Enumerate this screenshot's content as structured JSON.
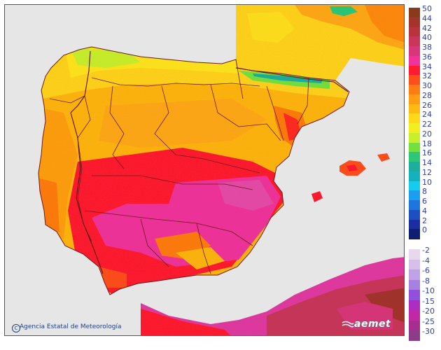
{
  "map": {
    "credit_text": "Agencia Estatal de Meteorología",
    "credit_symbol": "C",
    "logo_text": "aemet",
    "sea_color": "#e6e6e6",
    "border_color": "#6b1a1a"
  },
  "legend": {
    "entries": [
      {
        "label": "50",
        "color": "#8a3a1c"
      },
      {
        "label": "44",
        "color": "#a3342c"
      },
      {
        "label": "42",
        "color": "#b8343c"
      },
      {
        "label": "40",
        "color": "#c8365a"
      },
      {
        "label": "38",
        "color": "#d83678"
      },
      {
        "label": "36",
        "color": "#f0329a"
      },
      {
        "label": "34",
        "color": "#ff1a2e"
      },
      {
        "label": "32",
        "color": "#ff4e1a"
      },
      {
        "label": "30",
        "color": "#ff7c10"
      },
      {
        "label": "28",
        "color": "#ff9e12"
      },
      {
        "label": "26",
        "color": "#ffba10"
      },
      {
        "label": "24",
        "color": "#ffd818"
      },
      {
        "label": "22",
        "color": "#f0f020"
      },
      {
        "label": "20",
        "color": "#c8ee2c"
      },
      {
        "label": "18",
        "color": "#74e040"
      },
      {
        "label": "16",
        "color": "#2cc878"
      },
      {
        "label": "14",
        "color": "#1cae9e"
      },
      {
        "label": "12",
        "color": "#12b2c0"
      },
      {
        "label": "10",
        "color": "#16ccec"
      },
      {
        "label": "8",
        "color": "#1a9ef0"
      },
      {
        "label": "6",
        "color": "#1c76de"
      },
      {
        "label": "4",
        "color": "#1c50c0"
      },
      {
        "label": "2",
        "color": "#1a2ea0"
      },
      {
        "label": "0",
        "color": "#101e70"
      },
      {
        "label": "-2",
        "color": "#e8d8ee"
      },
      {
        "label": "-4",
        "color": "#d6c0ea"
      },
      {
        "label": "-6",
        "color": "#c0a2e6"
      },
      {
        "label": "-8",
        "color": "#a880e0"
      },
      {
        "label": "-10",
        "color": "#9050dc"
      },
      {
        "label": "-15",
        "color": "#ae2cc0"
      },
      {
        "label": "-20",
        "color": "#c228a6"
      },
      {
        "label": "-25",
        "color": "#a72d8f"
      },
      {
        "label": "-30",
        "color": "#8c3c88"
      }
    ]
  }
}
